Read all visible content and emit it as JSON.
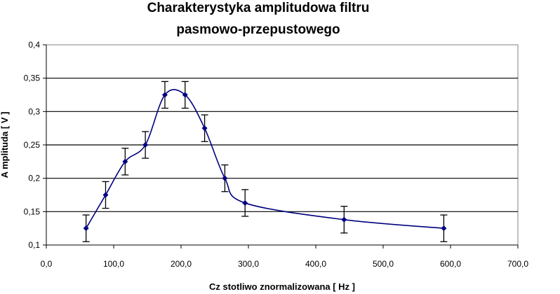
{
  "chart_data": {
    "type": "scatter",
    "title_line1": "Charakterystyka amplitudowa filtru",
    "title_line2": "pasmowo-przepustowego",
    "xlabel": "Cz  stotliwo     znormalizowana [ Hz ]",
    "ylabel": "A mplituda [ V ]",
    "xlim": [
      0,
      700
    ],
    "ylim": [
      0.1,
      0.4
    ],
    "x_ticks": [
      0,
      100,
      200,
      300,
      400,
      500,
      600,
      700
    ],
    "x_tick_labels": [
      "0,0",
      "100,0",
      "200,0",
      "300,0",
      "400,0",
      "500,0",
      "600,0",
      "700,0"
    ],
    "y_ticks": [
      0.1,
      0.15,
      0.2,
      0.25,
      0.3,
      0.35,
      0.4
    ],
    "y_tick_labels": [
      "0,1",
      "0,15",
      "0,2",
      "0,25",
      "0,3",
      "0,35",
      "0,4"
    ],
    "horizontal_grid": true,
    "smoothed_line": true,
    "series": [
      {
        "color": "#000080",
        "x": [
          59,
          88,
          117,
          147,
          176,
          206,
          235,
          265,
          295,
          442,
          590
        ],
        "y": [
          0.125,
          0.175,
          0.225,
          0.25,
          0.325,
          0.325,
          0.275,
          0.2,
          0.163,
          0.138,
          0.125
        ],
        "error": 0.02
      }
    ]
  }
}
